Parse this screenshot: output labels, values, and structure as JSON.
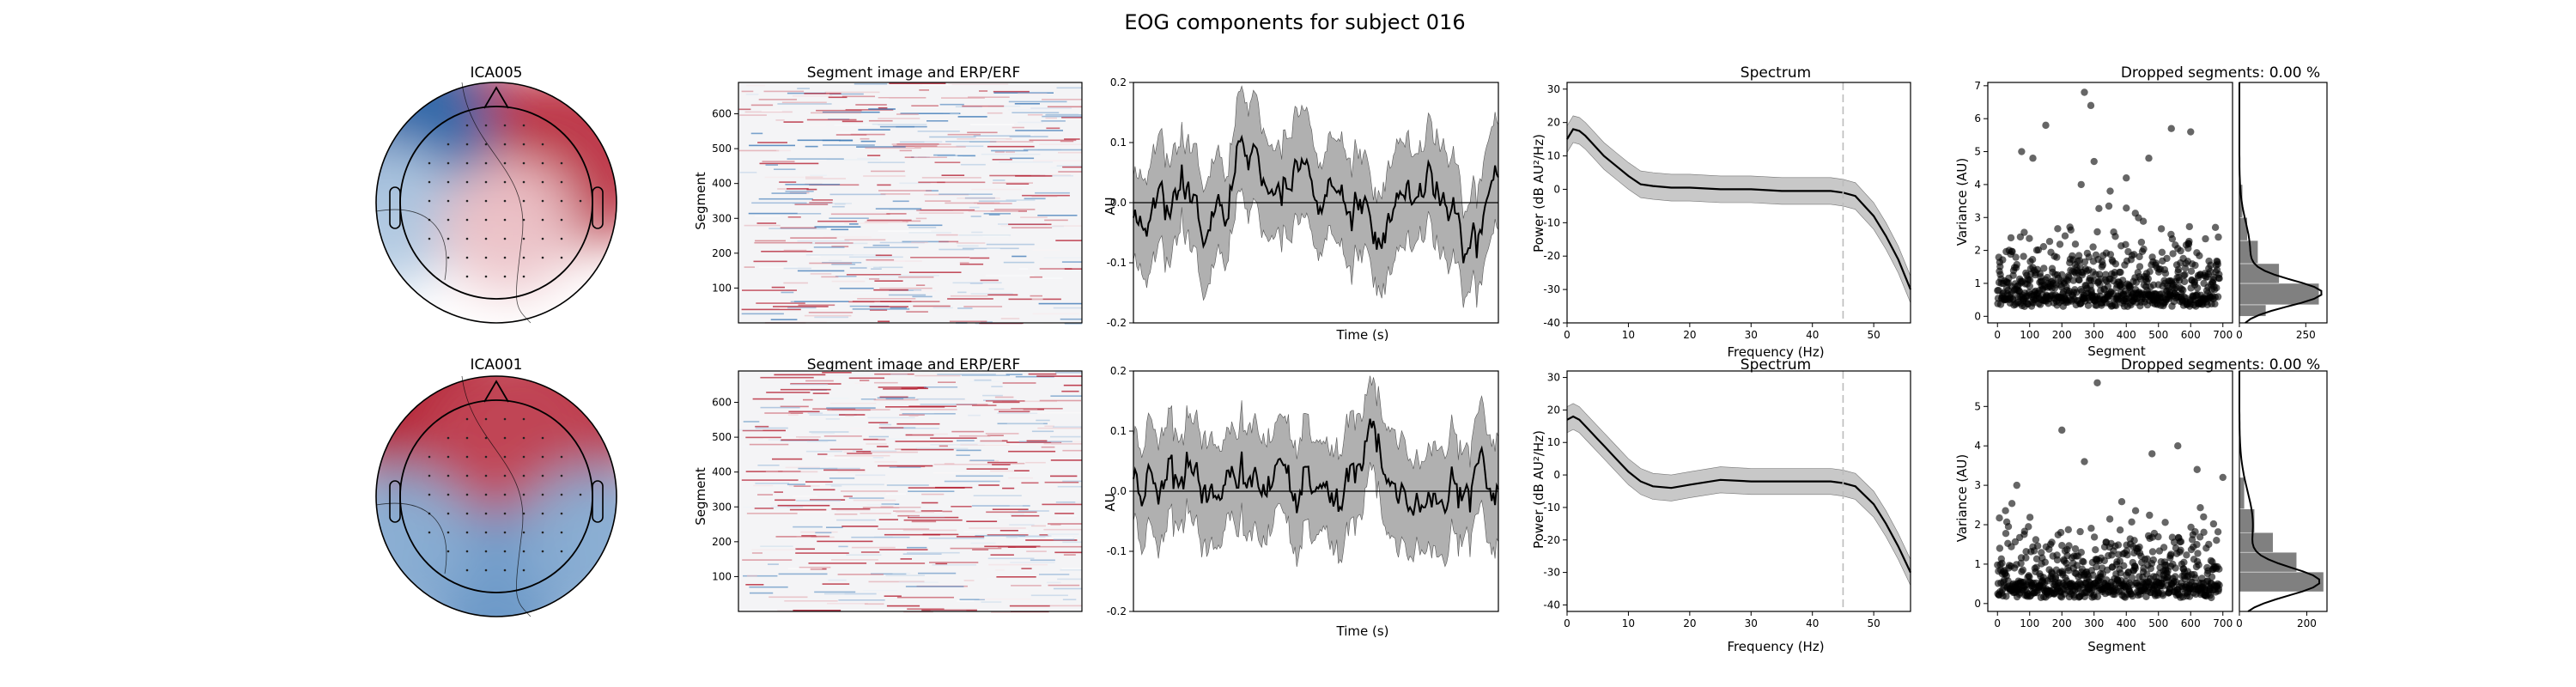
{
  "figure": {
    "title": "EOG components for subject 016"
  },
  "colors": {
    "red": "#b2182b",
    "blue": "#2166ac",
    "ci_fill": "#b0b0b0",
    "line": "#000000",
    "dashed": "#bbbbbb",
    "hist_bar": "#808080"
  },
  "rows": [
    {
      "component": "ICA005",
      "topomap": {
        "title": "ICA005",
        "peaks": [
          {
            "u": 0.33,
            "v": 0.26,
            "value": 0.95
          },
          {
            "u": 0.82,
            "v": 0.32,
            "value": 0.9
          },
          {
            "u": 0.1,
            "v": 0.2,
            "value": -0.95
          },
          {
            "u": 0.05,
            "v": 0.55,
            "value": -0.35
          },
          {
            "u": 0.55,
            "v": 0.6,
            "value": 0.25
          }
        ]
      },
      "segment_image": {
        "title": "Segment image and ERP/ERF",
        "ylabel": "Segment",
        "yticks": [
          100,
          200,
          300,
          400,
          500,
          600
        ],
        "ylim": [
          0,
          690
        ],
        "n_segments": 690
      },
      "erp": {
        "xlabel": "Time (s)",
        "ylabel": "AU",
        "ylim": [
          -0.2,
          0.2
        ],
        "yticks": [
          -0.2,
          -0.1,
          0.0,
          0.1,
          0.2
        ],
        "ytick_labels": [
          "-0.2",
          "-0.1",
          "0.0",
          "0.1",
          "0.2"
        ]
      },
      "spectrum": {
        "title": "Spectrum",
        "xlabel": "Frequency (Hz)",
        "ylabel": "Power (dB AU²/Hz)",
        "xlim": [
          0,
          56
        ],
        "ylim": [
          -40,
          32
        ],
        "xticks": [
          0,
          10,
          20,
          30,
          40,
          50
        ],
        "yticks": [
          -40,
          -30,
          -20,
          -10,
          0,
          10,
          20,
          30
        ],
        "cutoff_hz": 45,
        "freq": [
          0,
          1,
          2,
          3,
          4,
          5,
          6,
          8,
          10,
          12,
          14,
          17,
          20,
          25,
          30,
          35,
          40,
          43,
          45,
          47,
          50,
          52,
          54,
          56
        ],
        "power": [
          15,
          18,
          17.5,
          16,
          14,
          12,
          10,
          7,
          4,
          1.5,
          1,
          0.5,
          0.5,
          0,
          0,
          -0.5,
          -0.5,
          -0.5,
          -1,
          -2,
          -8,
          -14,
          -21,
          -30
        ],
        "ci_halfwidth": 4
      },
      "variance": {
        "title": "Dropped segments: 0.00 %",
        "xlabel": "Segment",
        "ylabel": "Variance (AU)",
        "xlim": [
          -30,
          730
        ],
        "ylim": [
          -0.2,
          7.1
        ],
        "xticks": [
          0,
          100,
          200,
          300,
          400,
          500,
          600,
          700
        ],
        "yticks": [
          0,
          1,
          2,
          3,
          4,
          5,
          6,
          7
        ],
        "n_segments": 690,
        "baseline": 0.5,
        "outliers": [
          {
            "x": 270,
            "y": 6.8
          },
          {
            "x": 150,
            "y": 5.8
          },
          {
            "x": 290,
            "y": 6.4
          },
          {
            "x": 540,
            "y": 5.7
          },
          {
            "x": 600,
            "y": 5.6
          },
          {
            "x": 75,
            "y": 5.0
          },
          {
            "x": 110,
            "y": 4.8
          },
          {
            "x": 300,
            "y": 4.7
          },
          {
            "x": 400,
            "y": 4.2
          },
          {
            "x": 470,
            "y": 4.8
          },
          {
            "x": 260,
            "y": 4.0
          },
          {
            "x": 350,
            "y": 3.8
          }
        ],
        "hist": {
          "xticks": [
            0,
            250
          ],
          "xlim": [
            0,
            330
          ],
          "bins": [
            {
              "lo": 0.0,
              "hi": 0.35,
              "count": 100
            },
            {
              "lo": 0.35,
              "hi": 1.0,
              "count": 300
            },
            {
              "lo": 1.0,
              "hi": 1.6,
              "count": 150
            },
            {
              "lo": 1.6,
              "hi": 2.3,
              "count": 70
            },
            {
              "lo": 2.3,
              "hi": 3.0,
              "count": 30
            },
            {
              "lo": 3.0,
              "hi": 4.0,
              "count": 12
            }
          ]
        }
      }
    },
    {
      "component": "ICA001",
      "topomap": {
        "title": "ICA001",
        "peaks": [
          {
            "u": 0.2,
            "v": 0.15,
            "value": 1.0
          },
          {
            "u": 0.8,
            "v": 0.15,
            "value": 0.9
          },
          {
            "u": 0.55,
            "v": 0.3,
            "value": 0.8
          },
          {
            "u": 0.5,
            "v": 0.9,
            "value": -0.7
          },
          {
            "u": 0.1,
            "v": 0.7,
            "value": -0.55
          },
          {
            "u": 0.9,
            "v": 0.7,
            "value": -0.55
          }
        ]
      },
      "segment_image": {
        "title": "Segment image and ERP/ERF",
        "ylabel": "Segment",
        "yticks": [
          100,
          200,
          300,
          400,
          500,
          600
        ],
        "ylim": [
          0,
          690
        ],
        "n_segments": 690
      },
      "erp": {
        "xlabel": "Time (s)",
        "ylabel": "AU",
        "ylim": [
          -0.2,
          0.2
        ],
        "yticks": [
          -0.2,
          -0.1,
          0.0,
          0.1,
          0.2
        ],
        "ytick_labels": [
          "-0.2",
          "-0.1",
          "0.0",
          "0.1",
          "0.2"
        ]
      },
      "spectrum": {
        "title": "Spectrum",
        "xlabel": "Frequency (Hz)",
        "ylabel": "Power (dB AU²/Hz)",
        "xlim": [
          0,
          56
        ],
        "ylim": [
          -42,
          32
        ],
        "xticks": [
          0,
          10,
          20,
          30,
          40,
          50
        ],
        "yticks": [
          -40,
          -30,
          -20,
          -10,
          0,
          10,
          20,
          30
        ],
        "cutoff_hz": 45,
        "freq": [
          0,
          1,
          2,
          3,
          4,
          5,
          6,
          8,
          10,
          12,
          14,
          17,
          20,
          25,
          30,
          35,
          40,
          43,
          45,
          47,
          50,
          52,
          54,
          56
        ],
        "power": [
          17,
          18,
          17,
          15,
          13,
          11,
          9,
          5,
          1,
          -2,
          -3.5,
          -4,
          -3,
          -1.5,
          -2,
          -2,
          -2,
          -2,
          -2.5,
          -3.5,
          -9,
          -15,
          -22,
          -30
        ],
        "ci_halfwidth": 4
      },
      "variance": {
        "title": "Dropped segments: 0.00 %",
        "xlabel": "Segment",
        "ylabel": "Variance (AU)",
        "xlim": [
          -30,
          730
        ],
        "ylim": [
          -0.2,
          5.9
        ],
        "xticks": [
          0,
          100,
          200,
          300,
          400,
          500,
          600,
          700
        ],
        "yticks": [
          0,
          1,
          2,
          3,
          4,
          5
        ],
        "n_segments": 690,
        "baseline": 0.25,
        "outliers": [
          {
            "x": 310,
            "y": 5.6
          },
          {
            "x": 200,
            "y": 4.4
          },
          {
            "x": 560,
            "y": 4.0
          },
          {
            "x": 480,
            "y": 3.8
          },
          {
            "x": 620,
            "y": 3.4
          },
          {
            "x": 700,
            "y": 3.2
          },
          {
            "x": 270,
            "y": 3.6
          },
          {
            "x": 60,
            "y": 3.0
          }
        ],
        "hist": {
          "xticks": [
            0,
            200
          ],
          "xlim": [
            0,
            260
          ],
          "bins": [
            {
              "lo": 0.3,
              "hi": 0.8,
              "count": 250
            },
            {
              "lo": 0.8,
              "hi": 1.3,
              "count": 170
            },
            {
              "lo": 1.3,
              "hi": 1.8,
              "count": 100
            },
            {
              "lo": 1.8,
              "hi": 2.4,
              "count": 45
            },
            {
              "lo": 2.4,
              "hi": 3.2,
              "count": 15
            }
          ]
        }
      }
    }
  ],
  "chart_data": [
    {
      "type": "line",
      "title": "Spectrum",
      "xlabel": "Frequency (Hz)",
      "ylabel": "Power (dB AU²/Hz)",
      "x": [
        0,
        1,
        2,
        3,
        4,
        5,
        6,
        8,
        10,
        12,
        14,
        17,
        20,
        25,
        30,
        35,
        40,
        43,
        45,
        47,
        50,
        52,
        54,
        56
      ],
      "series": [
        {
          "values": [
            15,
            18,
            17.5,
            16,
            14,
            12,
            10,
            7,
            4,
            1.5,
            1,
            0.5,
            0.5,
            0,
            0,
            -0.5,
            -0.5,
            -0.5,
            -1,
            -2,
            -8,
            -14,
            -21,
            -30
          ]
        },
        {
          "values": [
            17,
            18,
            17,
            15,
            13,
            11,
            9,
            5,
            1,
            -2,
            -3.5,
            -4,
            -3,
            -1.5,
            -2,
            -2,
            -2,
            -2,
            -2.5,
            -3.5,
            -9,
            -15,
            -22,
            -30
          ]
        }
      ],
      "xlim": [
        0,
        56
      ],
      "ylim": [
        -40,
        32
      ],
      "grid": false
    },
    {
      "type": "scatter",
      "title": "Dropped segments: 0.00 %",
      "xlabel": "Segment",
      "ylabel": "Variance (AU)",
      "xlim": [
        -30,
        730
      ],
      "grid": false
    }
  ]
}
